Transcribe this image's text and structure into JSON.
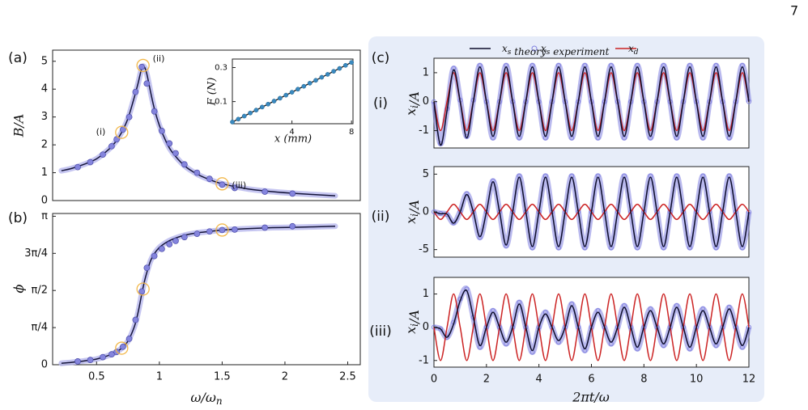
{
  "page_number": "7",
  "chart_data": [
    {
      "type": "line",
      "panel_label": "(a)",
      "ylabel": "B/A",
      "xlim": [
        0.15,
        2.6
      ],
      "ylim": [
        0,
        5.4
      ],
      "yticks": [
        0,
        1,
        2,
        3,
        4,
        5
      ],
      "highlight_color": "#f2b84b",
      "annotations": [
        {
          "text": "(i)",
          "x": 0.7,
          "y": 2.45
        },
        {
          "text": "(ii)",
          "x": 0.87,
          "y": 4.85
        },
        {
          "text": "(iii)",
          "x": 1.5,
          "y": 0.6
        }
      ],
      "series": [
        {
          "style": "line",
          "color": "#14143a",
          "band": "#b8b8ee",
          "x": [
            0.22,
            0.3,
            0.4,
            0.5,
            0.6,
            0.65,
            0.7,
            0.75,
            0.8,
            0.83,
            0.86,
            0.88,
            0.9,
            0.93,
            0.96,
            1.0,
            1.05,
            1.1,
            1.2,
            1.3,
            1.4,
            1.5,
            1.7,
            1.9,
            2.1,
            2.4
          ],
          "values": [
            1.07,
            1.15,
            1.3,
            1.5,
            1.85,
            2.1,
            2.45,
            2.95,
            3.7,
            4.2,
            4.75,
            4.8,
            4.55,
            3.9,
            3.3,
            2.7,
            2.15,
            1.75,
            1.25,
            0.95,
            0.75,
            0.6,
            0.42,
            0.32,
            0.25,
            0.17
          ]
        },
        {
          "style": "scatter",
          "color": "#8585dd",
          "x": [
            0.35,
            0.45,
            0.55,
            0.62,
            0.66,
            0.71,
            0.76,
            0.81,
            0.86,
            0.9,
            0.96,
            1.02,
            1.08,
            1.13,
            1.2,
            1.3,
            1.4,
            1.5,
            1.6,
            1.84,
            2.06
          ],
          "values": [
            1.2,
            1.38,
            1.65,
            1.95,
            2.2,
            2.55,
            3.0,
            3.9,
            4.8,
            4.2,
            3.2,
            2.5,
            2.05,
            1.7,
            1.3,
            1.0,
            0.78,
            0.57,
            0.45,
            0.32,
            0.25
          ]
        }
      ]
    },
    {
      "type": "scatter",
      "xlabel": "x (mm)",
      "ylabel": "F (N)",
      "xlim": [
        0,
        8.1
      ],
      "ylim": [
        -0.03,
        0.35
      ],
      "xticks": [
        4,
        8
      ],
      "yticks": [
        0.1,
        0.3
      ],
      "color": "#3a8ac0",
      "fit_color": "#111111",
      "x": [
        0,
        0.4,
        0.8,
        1.2,
        1.6,
        2,
        2.4,
        2.8,
        3.2,
        3.6,
        4,
        4.4,
        4.8,
        5.2,
        5.6,
        6,
        6.4,
        6.8,
        7.2,
        7.6,
        8
      ],
      "values": [
        -0.02,
        -0.003,
        0.015,
        0.033,
        0.05,
        0.068,
        0.085,
        0.103,
        0.12,
        0.138,
        0.155,
        0.173,
        0.19,
        0.208,
        0.225,
        0.243,
        0.26,
        0.278,
        0.295,
        0.313,
        0.33
      ]
    },
    {
      "type": "line",
      "panel_label": "(b)",
      "ylabel": "ϕ",
      "xlabel": "ω/ω_n",
      "xlim": [
        0.15,
        2.6
      ],
      "ylim": [
        0,
        3.2
      ],
      "xticks": [
        0.5,
        1,
        1.5,
        2,
        2.5
      ],
      "yticks": [
        0,
        {
          "value": 0.7854,
          "label": "π/4"
        },
        {
          "value": 1.5708,
          "label": "π/2"
        },
        {
          "value": 2.3562,
          "label": "3π/4"
        },
        {
          "value": 3.1416,
          "label": "π"
        }
      ],
      "highlight_color": "#f2b84b",
      "highlights": [
        {
          "x": 0.7,
          "y": 0.35
        },
        {
          "x": 0.87,
          "y": 1.6
        },
        {
          "x": 1.5,
          "y": 2.85
        }
      ],
      "series": [
        {
          "style": "line",
          "color": "#14143a",
          "band": "#b8b8ee",
          "x": [
            0.22,
            0.3,
            0.4,
            0.5,
            0.6,
            0.65,
            0.7,
            0.75,
            0.8,
            0.83,
            0.86,
            0.88,
            0.9,
            0.93,
            0.96,
            1.0,
            1.05,
            1.1,
            1.2,
            1.3,
            1.4,
            1.5,
            1.7,
            1.9,
            2.1,
            2.4
          ],
          "values": [
            0.03,
            0.05,
            0.08,
            0.12,
            0.2,
            0.26,
            0.35,
            0.5,
            0.8,
            1.1,
            1.5,
            1.75,
            1.95,
            2.2,
            2.35,
            2.48,
            2.58,
            2.65,
            2.74,
            2.79,
            2.82,
            2.85,
            2.88,
            2.9,
            2.91,
            2.93
          ]
        },
        {
          "style": "scatter",
          "color": "#8585dd",
          "x": [
            0.35,
            0.45,
            0.55,
            0.62,
            0.66,
            0.71,
            0.76,
            0.81,
            0.86,
            0.9,
            0.96,
            1.02,
            1.08,
            1.13,
            1.2,
            1.3,
            1.4,
            1.5,
            1.6,
            1.84,
            2.06
          ],
          "values": [
            0.07,
            0.1,
            0.16,
            0.22,
            0.27,
            0.38,
            0.55,
            0.95,
            1.55,
            2.05,
            2.3,
            2.45,
            2.55,
            2.62,
            2.7,
            2.77,
            2.82,
            2.85,
            2.86,
            2.9,
            2.93
          ]
        }
      ]
    },
    {
      "type": "line",
      "panel_label": "(c)",
      "row_label": "(i)",
      "ylabel": "x_i/A",
      "xlim": [
        0,
        12
      ],
      "ylim": [
        -1.6,
        1.5
      ],
      "yticks": [
        -1,
        0,
        1
      ],
      "x": [
        0,
        0.25,
        0.5,
        0.75,
        1,
        1.25,
        1.5,
        1.75,
        2,
        2.25,
        2.5,
        2.75,
        3,
        3.25,
        3.5,
        3.75,
        4,
        4.25,
        4.5,
        4.75,
        5,
        5.25,
        5.5,
        5.75,
        6,
        6.25,
        6.5,
        6.75,
        7,
        7.25,
        7.5,
        7.75,
        8,
        8.25,
        8.5,
        8.75,
        9,
        9.25,
        9.5,
        9.75,
        10,
        10.25,
        10.5,
        10.75,
        11,
        11.25,
        11.5,
        11.75,
        12
      ],
      "series": [
        {
          "name": "x_s experiment",
          "style": "scatter",
          "color": "#8080e0",
          "values": [
            0,
            -1.45,
            -0.25,
            1.15,
            0.05,
            -1.2,
            0.05,
            1.25,
            0,
            -1.25,
            0,
            1.25,
            0,
            -1.25,
            0,
            1.25,
            0,
            -1.25,
            0,
            1.25,
            0,
            -1.25,
            0,
            1.25,
            0,
            -1.25,
            0,
            1.25,
            0,
            -1.25,
            0,
            1.25,
            0,
            -1.25,
            0,
            1.25,
            0,
            -1.25,
            0,
            1.25,
            0,
            -1.25,
            0,
            1.25,
            0,
            -1.25,
            0,
            1.25,
            0
          ]
        },
        {
          "name": "x_d",
          "style": "line",
          "color": "#cc2424",
          "values": [
            0,
            -1,
            0,
            1,
            0,
            -1,
            0,
            1,
            0,
            -1,
            0,
            1,
            0,
            -1,
            0,
            1,
            0,
            -1,
            0,
            1,
            0,
            -1,
            0,
            1,
            0,
            -1,
            0,
            1,
            0,
            -1,
            0,
            1,
            0,
            -1,
            0,
            1,
            0,
            -1,
            0,
            1,
            0,
            -1,
            0,
            1,
            0,
            -1,
            0,
            1,
            0
          ]
        },
        {
          "name": "x_s theory",
          "style": "line",
          "color": "#0d0d2b",
          "values": [
            0,
            -1.5,
            -0.3,
            1.1,
            0,
            -1.25,
            0,
            1.2,
            0,
            -1.2,
            0,
            1.2,
            0,
            -1.2,
            0,
            1.2,
            0,
            -1.2,
            0,
            1.2,
            0,
            -1.2,
            0,
            1.2,
            0,
            -1.2,
            0,
            1.2,
            0,
            -1.2,
            0,
            1.2,
            0,
            -1.2,
            0,
            1.2,
            0,
            -1.2,
            0,
            1.2,
            0,
            -1.2,
            0,
            1.2,
            0,
            -1.2,
            0,
            1.2,
            0
          ]
        }
      ]
    },
    {
      "type": "line",
      "row_label": "(ii)",
      "ylabel": "x_i/A",
      "xlim": [
        0,
        12
      ],
      "ylim": [
        -6,
        6
      ],
      "yticks": [
        -5,
        0,
        5
      ],
      "x": [
        0,
        0.25,
        0.5,
        0.75,
        1,
        1.25,
        1.5,
        1.75,
        2,
        2.25,
        2.5,
        2.75,
        3,
        3.25,
        3.5,
        3.75,
        4,
        4.25,
        4.5,
        4.75,
        5,
        5.25,
        5.5,
        5.75,
        6,
        6.25,
        6.5,
        6.75,
        7,
        7.25,
        7.5,
        7.75,
        8,
        8.25,
        8.5,
        8.75,
        9,
        9.25,
        9.5,
        9.75,
        10,
        10.25,
        10.5,
        10.75,
        11,
        11.25,
        11.5,
        11.75,
        12
      ],
      "series": [
        {
          "style": "scatter",
          "color": "#8080e0",
          "values": [
            0,
            -0.2,
            -0.35,
            -1.45,
            0.05,
            2.4,
            0,
            -3.4,
            0,
            4.1,
            0,
            -4.5,
            0,
            4.75,
            0,
            -4.75,
            0,
            4.75,
            0,
            -4.75,
            0,
            4.75,
            0,
            -4.75,
            0,
            4.75,
            0,
            -4.75,
            0,
            4.75,
            0,
            -4.75,
            0,
            4.75,
            0,
            -4.75,
            0,
            4.75,
            0,
            -4.75,
            0,
            4.75,
            0,
            -4.75,
            0,
            4.75,
            0,
            -4.75,
            0
          ]
        },
        {
          "style": "line",
          "color": "#cc2424",
          "values": [
            0,
            -1,
            0,
            1,
            0,
            -1,
            0,
            1,
            0,
            -1,
            0,
            1,
            0,
            -1,
            0,
            1,
            0,
            -1,
            0,
            1,
            0,
            -1,
            0,
            1,
            0,
            -1,
            0,
            1,
            0,
            -1,
            0,
            1,
            0,
            -1,
            0,
            1,
            0,
            -1,
            0,
            1,
            0,
            -1,
            0,
            1,
            0,
            -1,
            0,
            1,
            0
          ]
        },
        {
          "style": "line",
          "color": "#0d0d2b",
          "values": [
            0,
            -0.25,
            -0.3,
            -1.5,
            0,
            2.3,
            0,
            -3.3,
            0,
            4,
            0,
            -4.4,
            0,
            4.6,
            0,
            -4.6,
            0,
            4.6,
            0,
            -4.6,
            0,
            4.6,
            0,
            -4.6,
            0,
            4.6,
            0,
            -4.6,
            0,
            4.6,
            0,
            -4.6,
            0,
            4.6,
            0,
            -4.6,
            0,
            4.6,
            0,
            -4.6,
            0,
            4.6,
            0,
            -4.6,
            0,
            4.6,
            0,
            -4.6,
            0
          ]
        }
      ]
    },
    {
      "type": "line",
      "row_label": "(iii)",
      "ylabel": "x_i/A",
      "xlabel": "2πt/ω",
      "xlim": [
        0,
        12
      ],
      "ylim": [
        -1.2,
        1.5
      ],
      "yticks": [
        -1,
        0,
        1
      ],
      "xticks": [
        0,
        2,
        4,
        6,
        8,
        10,
        12
      ],
      "x": [
        0,
        0.25,
        0.5,
        0.75,
        1,
        1.25,
        1.5,
        1.75,
        2,
        2.25,
        2.5,
        2.75,
        3,
        3.25,
        3.5,
        3.75,
        4,
        4.25,
        4.5,
        4.75,
        5,
        5.25,
        5.5,
        5.75,
        6,
        6.25,
        6.5,
        6.75,
        7,
        7.25,
        7.5,
        7.75,
        8,
        8.25,
        8.5,
        8.75,
        9,
        9.25,
        9.5,
        9.75,
        10,
        10.25,
        10.5,
        10.75,
        11,
        11.25,
        11.5,
        11.75,
        12
      ],
      "series": [
        {
          "style": "scatter",
          "color": "#8080e0",
          "values": [
            0,
            -0.05,
            -0.3,
            0.15,
            0.85,
            1.15,
            0.3,
            -0.6,
            0,
            0.5,
            0,
            -0.5,
            0,
            0.75,
            0,
            -0.75,
            0,
            0.45,
            0,
            -0.45,
            0,
            0.7,
            0,
            -0.7,
            0,
            0.5,
            0,
            -0.5,
            0,
            0.65,
            0,
            -0.65,
            0,
            0.55,
            0,
            -0.55,
            0,
            0.65,
            0,
            -0.65,
            0,
            0.55,
            0,
            -0.55,
            0,
            0.6,
            0,
            -0.6,
            0
          ]
        },
        {
          "style": "line",
          "color": "#cc2424",
          "values": [
            0,
            -1,
            0,
            1,
            0,
            -1,
            0,
            1,
            0,
            -1,
            0,
            1,
            0,
            -1,
            0,
            1,
            0,
            -1,
            0,
            1,
            0,
            -1,
            0,
            1,
            0,
            -1,
            0,
            1,
            0,
            -1,
            0,
            1,
            0,
            -1,
            0,
            1,
            0,
            -1,
            0,
            1,
            0,
            -1,
            0,
            1,
            0,
            -1,
            0,
            1,
            0
          ]
        },
        {
          "style": "line",
          "color": "#0d0d2b",
          "values": [
            0,
            -0.05,
            -0.3,
            0.1,
            0.8,
            1.1,
            0.3,
            -0.55,
            0,
            0.45,
            0,
            -0.45,
            0,
            0.7,
            0,
            -0.7,
            0,
            0.4,
            0,
            -0.4,
            0,
            0.65,
            0,
            -0.65,
            0,
            0.45,
            0,
            -0.45,
            0,
            0.6,
            0,
            -0.6,
            0,
            0.5,
            0,
            -0.5,
            0,
            0.6,
            0,
            -0.6,
            0,
            0.5,
            0,
            -0.5,
            0,
            0.55,
            0,
            -0.55,
            0
          ]
        }
      ]
    }
  ]
}
